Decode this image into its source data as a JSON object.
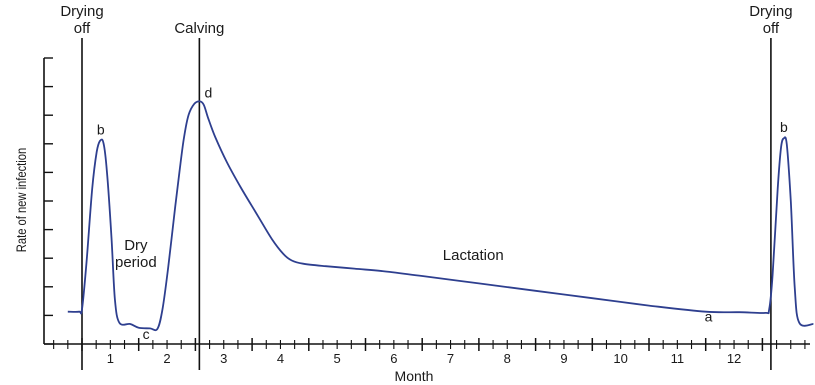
{
  "chart_data": {
    "type": "line",
    "xlabel": "Month",
    "ylabel": "Rate of new infection",
    "x_ticks": [
      "1",
      "2",
      "3",
      "4",
      "5",
      "6",
      "7",
      "8",
      "9",
      "10",
      "11",
      "12"
    ],
    "xlim": [
      -0.65,
      13.2
    ],
    "ylim": [
      0,
      1
    ],
    "y_tick_labels": false,
    "grid": false,
    "series": [
      {
        "name": "",
        "color": "#2e3f8f",
        "points": [
          [
            -0.25,
            0.05
          ],
          [
            -0.05,
            0.05
          ],
          [
            0.0,
            0.06
          ],
          [
            0.08,
            0.25
          ],
          [
            0.18,
            0.55
          ],
          [
            0.26,
            0.7
          ],
          [
            0.32,
            0.745
          ],
          [
            0.38,
            0.735
          ],
          [
            0.44,
            0.62
          ],
          [
            0.52,
            0.35
          ],
          [
            0.58,
            0.1
          ],
          [
            0.66,
            0.005
          ],
          [
            0.85,
            0.0
          ],
          [
            1.0,
            -0.015
          ],
          [
            1.2,
            -0.018
          ],
          [
            1.33,
            -0.02
          ],
          [
            1.42,
            0.06
          ],
          [
            1.52,
            0.23
          ],
          [
            1.62,
            0.43
          ],
          [
            1.72,
            0.62
          ],
          [
            1.8,
            0.76
          ],
          [
            1.88,
            0.85
          ],
          [
            1.98,
            0.895
          ],
          [
            2.08,
            0.905
          ],
          [
            2.15,
            0.89
          ],
          [
            2.22,
            0.84
          ],
          [
            2.35,
            0.76
          ],
          [
            2.55,
            0.66
          ],
          [
            2.8,
            0.555
          ],
          [
            3.1,
            0.44
          ],
          [
            3.35,
            0.345
          ],
          [
            3.55,
            0.285
          ],
          [
            3.7,
            0.258
          ],
          [
            3.9,
            0.245
          ],
          [
            4.3,
            0.235
          ],
          [
            4.8,
            0.225
          ],
          [
            5.3,
            0.215
          ],
          [
            6.0,
            0.195
          ],
          [
            7.0,
            0.165
          ],
          [
            8.0,
            0.135
          ],
          [
            9.0,
            0.105
          ],
          [
            10.0,
            0.075
          ],
          [
            11.0,
            0.05
          ],
          [
            11.6,
            0.048
          ],
          [
            12.05,
            0.045
          ],
          [
            12.12,
            0.06
          ],
          [
            12.18,
            0.2
          ],
          [
            12.27,
            0.55
          ],
          [
            12.33,
            0.72
          ],
          [
            12.38,
            0.755
          ],
          [
            12.43,
            0.73
          ],
          [
            12.5,
            0.5
          ],
          [
            12.57,
            0.15
          ],
          [
            12.65,
            0.005
          ],
          [
            12.9,
            0.0
          ]
        ]
      }
    ],
    "markers": [
      {
        "x": 0.0,
        "label": "Drying off"
      },
      {
        "x": 2.07,
        "label": "Calving"
      },
      {
        "x": 12.15,
        "label": "Drying off"
      }
    ],
    "point_labels": [
      {
        "x": 0.33,
        "y": 0.77,
        "label": "b"
      },
      {
        "x": 1.13,
        "y": -0.06,
        "label": "c"
      },
      {
        "x": 2.23,
        "y": 0.92,
        "label": "d"
      },
      {
        "x": 11.05,
        "y": 0.01,
        "label": "a"
      },
      {
        "x": 12.38,
        "y": 0.78,
        "label": "b"
      }
    ],
    "region_labels": [
      {
        "x": 0.95,
        "y": 0.3,
        "lines": [
          "Dry",
          "period"
        ]
      },
      {
        "x": 6.9,
        "y": 0.26,
        "lines": [
          "Lactation"
        ]
      }
    ]
  }
}
